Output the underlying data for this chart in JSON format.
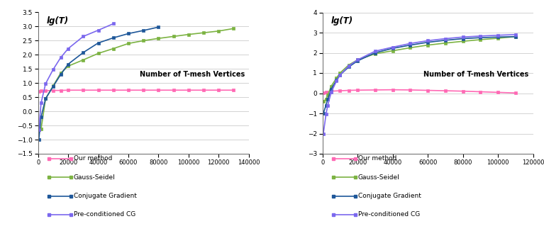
{
  "chart1": {
    "title": "lg(T)",
    "xlabel": "Number of T-mesh Vertices",
    "xlim": [
      0,
      140000
    ],
    "ylim": [
      -1.5,
      3.5
    ],
    "xticks": [
      0,
      20000,
      40000,
      60000,
      80000,
      100000,
      120000,
      140000
    ],
    "yticks": [
      -1.5,
      -1.0,
      -0.5,
      0,
      0.5,
      1.0,
      1.5,
      2.0,
      2.5,
      3.0,
      3.5
    ],
    "series": {
      "our_method": {
        "label": "Our method",
        "color": "#FF69B4",
        "x": [
          500,
          2000,
          5000,
          10000,
          15000,
          20000,
          30000,
          40000,
          50000,
          60000,
          70000,
          80000,
          90000,
          100000,
          110000,
          120000,
          130000
        ],
        "y": [
          0.7,
          0.72,
          0.73,
          0.74,
          0.74,
          0.75,
          0.75,
          0.75,
          0.75,
          0.75,
          0.75,
          0.75,
          0.75,
          0.75,
          0.75,
          0.75,
          0.75
        ]
      },
      "gauss_seidel": {
        "label": "Gauss-Seidel",
        "color": "#7CB342",
        "x": [
          500,
          2000,
          5000,
          10000,
          15000,
          20000,
          30000,
          40000,
          50000,
          60000,
          70000,
          80000,
          90000,
          100000,
          110000,
          120000,
          130000
        ],
        "y": [
          -0.65,
          -0.62,
          0.45,
          0.9,
          1.35,
          1.6,
          1.82,
          2.05,
          2.22,
          2.4,
          2.5,
          2.58,
          2.65,
          2.72,
          2.78,
          2.84,
          2.93
        ]
      },
      "conjugate_gradient": {
        "label": "Conjugate Gradient",
        "color": "#1E5799",
        "x": [
          500,
          2000,
          5000,
          10000,
          15000,
          20000,
          30000,
          40000,
          50000,
          60000,
          70000,
          80000
        ],
        "y": [
          -1.0,
          -0.2,
          0.45,
          0.88,
          1.3,
          1.67,
          2.08,
          2.42,
          2.6,
          2.75,
          2.86,
          2.98
        ]
      },
      "preconditioned_cg": {
        "label": "Pre-conditioned CG",
        "color": "#7B68EE",
        "x": [
          500,
          2000,
          5000,
          10000,
          15000,
          20000,
          30000,
          40000,
          50000
        ],
        "y": [
          -0.65,
          0.3,
          0.98,
          1.48,
          1.9,
          2.22,
          2.65,
          2.87,
          3.1
        ]
      }
    }
  },
  "chart2": {
    "title": "lg(T)",
    "xlabel": "Number of T-mesh Vertices",
    "xlim": [
      0,
      120000
    ],
    "ylim": [
      -3,
      4
    ],
    "xticks": [
      0,
      20000,
      40000,
      60000,
      80000,
      100000,
      120000
    ],
    "yticks": [
      -3,
      -2,
      -1,
      0,
      1,
      2,
      3,
      4
    ],
    "series": {
      "our_method": {
        "label": "Our method",
        "color": "#FF69B4",
        "x": [
          500,
          2000,
          5000,
          10000,
          15000,
          20000,
          30000,
          40000,
          50000,
          60000,
          70000,
          80000,
          90000,
          100000,
          110000
        ],
        "y": [
          0.02,
          0.05,
          0.1,
          0.12,
          0.14,
          0.15,
          0.16,
          0.17,
          0.16,
          0.14,
          0.12,
          0.1,
          0.07,
          0.04,
          0.01
        ]
      },
      "gauss_seidel": {
        "label": "Gauss-Seidel",
        "color": "#7CB342",
        "x": [
          500,
          2000,
          3000,
          5000,
          8000,
          10000,
          15000,
          20000,
          30000,
          40000,
          50000,
          60000,
          70000,
          80000,
          90000,
          100000,
          110000
        ],
        "y": [
          -0.4,
          -0.3,
          -0.1,
          0.35,
          0.75,
          1.0,
          1.4,
          1.65,
          1.95,
          2.1,
          2.25,
          2.38,
          2.48,
          2.57,
          2.65,
          2.72,
          2.8
        ]
      },
      "conjugate_gradient": {
        "label": "Conjugate Gradient",
        "color": "#1E5799",
        "x": [
          500,
          2000,
          3000,
          5000,
          8000,
          10000,
          15000,
          20000,
          30000,
          40000,
          50000,
          60000,
          70000,
          80000,
          90000,
          100000,
          110000
        ],
        "y": [
          -1.0,
          -0.6,
          -0.3,
          0.2,
          0.65,
          0.9,
          1.3,
          1.6,
          2.0,
          2.22,
          2.38,
          2.52,
          2.62,
          2.7,
          2.75,
          2.78,
          2.8
        ]
      },
      "preconditioned_cg": {
        "label": "Pre-conditioned CG",
        "color": "#7B68EE",
        "x": [
          500,
          2000,
          3000,
          5000,
          8000,
          10000,
          15000,
          20000,
          30000,
          40000,
          50000,
          60000,
          70000,
          80000,
          90000,
          100000,
          110000
        ],
        "y": [
          -2.0,
          -1.05,
          -0.6,
          0.05,
          0.6,
          0.9,
          1.35,
          1.65,
          2.08,
          2.28,
          2.46,
          2.6,
          2.7,
          2.78,
          2.83,
          2.87,
          2.9
        ]
      }
    }
  },
  "bg_color": "#FFFFFF",
  "legend_labels": [
    "Our method",
    "Gauss-Seidel",
    "Conjugate Gradient",
    "Pre-conditioned CG"
  ],
  "legend_colors": [
    "#FF69B4",
    "#7CB342",
    "#1E5799",
    "#7B68EE"
  ]
}
